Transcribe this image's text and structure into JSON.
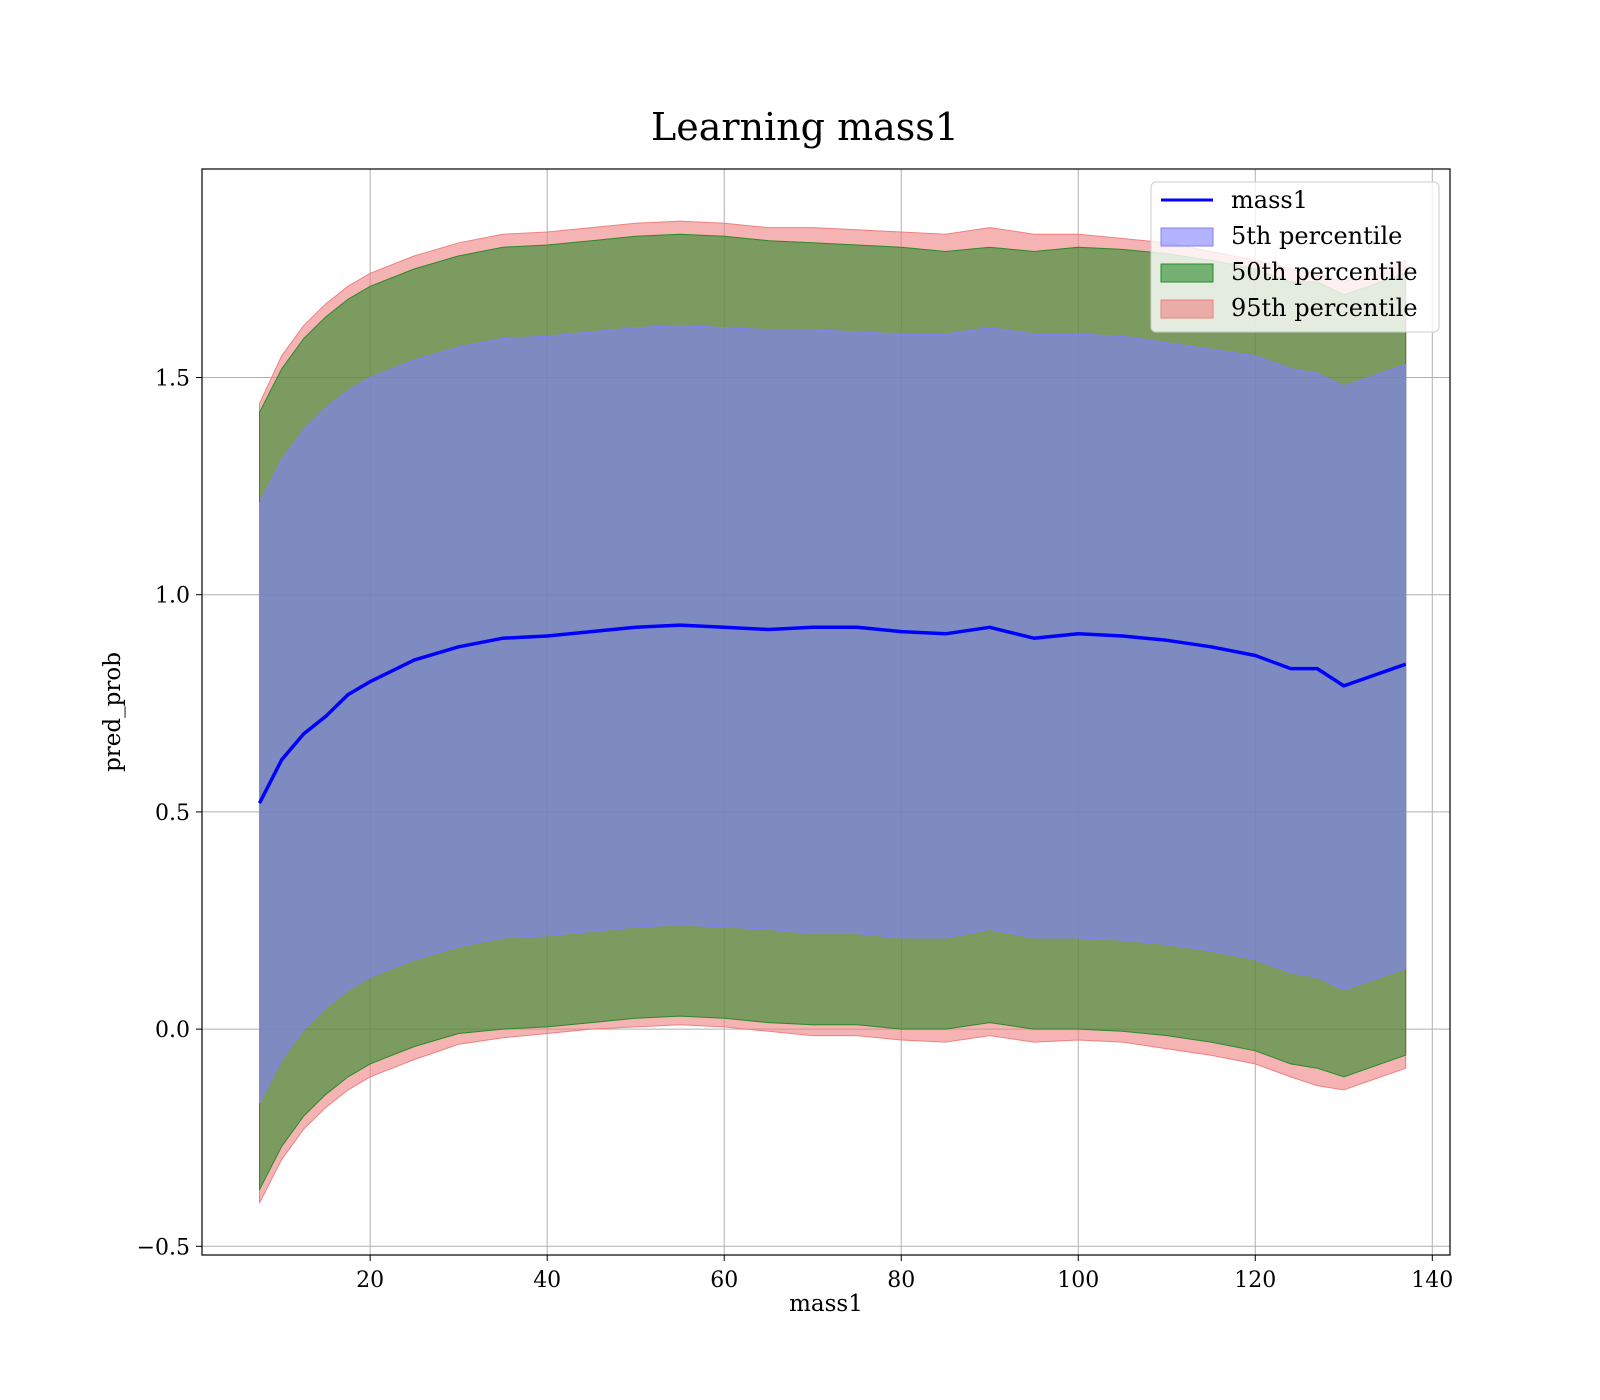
{
  "chart_data": {
    "type": "line",
    "title": "Learning mass1",
    "xlabel": "mass1",
    "ylabel": "pred_prob",
    "xlim": [
      1,
      142
    ],
    "ylim": [
      -0.52,
      1.98
    ],
    "xticks": [
      20,
      40,
      60,
      80,
      100,
      120,
      140
    ],
    "xtick_labels": [
      "20",
      "40",
      "60",
      "80",
      "100",
      "120",
      "140"
    ],
    "yticks": [
      -0.5,
      0.0,
      0.5,
      1.0,
      1.5
    ],
    "ytick_labels": [
      "−0.5",
      "0.0",
      "0.5",
      "1.0",
      "1.5"
    ],
    "grid": true,
    "legend_position": "top-right",
    "legend": [
      "mass1",
      "5th percentile",
      "50th percentile",
      "95th percentile"
    ],
    "x": [
      7.5,
      10,
      12.5,
      15,
      17.5,
      20,
      25,
      30,
      35,
      40,
      45,
      50,
      55,
      60,
      65,
      70,
      75,
      80,
      85,
      90,
      95,
      100,
      105,
      110,
      115,
      120,
      124,
      127,
      130,
      137
    ],
    "series": [
      {
        "name": "mass1",
        "type": "line",
        "color": "#0000ff",
        "values": [
          0.52,
          0.62,
          0.68,
          0.72,
          0.77,
          0.8,
          0.85,
          0.88,
          0.9,
          0.905,
          0.915,
          0.925,
          0.93,
          0.925,
          0.92,
          0.925,
          0.925,
          0.915,
          0.91,
          0.925,
          0.9,
          0.91,
          0.905,
          0.895,
          0.88,
          0.86,
          0.83,
          0.83,
          0.79,
          0.84
        ]
      },
      {
        "name": "5th percentile",
        "type": "band",
        "color": "#8080ff",
        "lower": [
          -0.17,
          -0.07,
          0.0,
          0.05,
          0.09,
          0.12,
          0.16,
          0.19,
          0.21,
          0.215,
          0.225,
          0.235,
          0.24,
          0.235,
          0.23,
          0.22,
          0.22,
          0.21,
          0.21,
          0.23,
          0.21,
          0.21,
          0.205,
          0.195,
          0.18,
          0.16,
          0.13,
          0.12,
          0.09,
          0.14
        ],
        "upper": [
          1.21,
          1.31,
          1.38,
          1.43,
          1.47,
          1.5,
          1.54,
          1.57,
          1.59,
          1.595,
          1.605,
          1.615,
          1.62,
          1.615,
          1.61,
          1.61,
          1.605,
          1.6,
          1.6,
          1.615,
          1.6,
          1.6,
          1.595,
          1.58,
          1.565,
          1.55,
          1.52,
          1.51,
          1.48,
          1.53
        ]
      },
      {
        "name": "50th percentile",
        "type": "band",
        "color": "#2a8a2a",
        "lower": [
          -0.37,
          -0.27,
          -0.2,
          -0.15,
          -0.11,
          -0.08,
          -0.04,
          -0.01,
          0.0,
          0.005,
          0.015,
          0.025,
          0.03,
          0.025,
          0.015,
          0.01,
          0.01,
          0.0,
          0.0,
          0.015,
          0.0,
          0.0,
          -0.005,
          -0.015,
          -0.03,
          -0.05,
          -0.08,
          -0.09,
          -0.11,
          -0.06
        ],
        "upper": [
          1.42,
          1.52,
          1.59,
          1.64,
          1.68,
          1.71,
          1.75,
          1.78,
          1.8,
          1.805,
          1.815,
          1.825,
          1.83,
          1.825,
          1.815,
          1.81,
          1.805,
          1.8,
          1.79,
          1.8,
          1.79,
          1.8,
          1.795,
          1.785,
          1.77,
          1.75,
          1.72,
          1.72,
          1.69,
          1.74
        ]
      },
      {
        "name": "95th percentile",
        "type": "band",
        "color": "#f08080",
        "lower": [
          -0.4,
          -0.3,
          -0.23,
          -0.18,
          -0.14,
          -0.11,
          -0.07,
          -0.035,
          -0.02,
          -0.01,
          0.0,
          0.005,
          0.01,
          0.005,
          -0.005,
          -0.015,
          -0.015,
          -0.025,
          -0.03,
          -0.015,
          -0.03,
          -0.025,
          -0.03,
          -0.045,
          -0.06,
          -0.08,
          -0.11,
          -0.13,
          -0.14,
          -0.09
        ],
        "upper": [
          1.44,
          1.55,
          1.62,
          1.67,
          1.71,
          1.74,
          1.78,
          1.81,
          1.83,
          1.835,
          1.845,
          1.855,
          1.86,
          1.855,
          1.845,
          1.845,
          1.84,
          1.835,
          1.83,
          1.845,
          1.83,
          1.83,
          1.82,
          1.81,
          1.79,
          1.77,
          1.75,
          1.74,
          1.72,
          1.77
        ]
      }
    ]
  }
}
